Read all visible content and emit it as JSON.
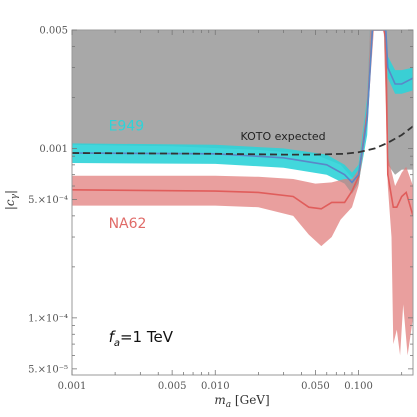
{
  "chart_data": {
    "type": "area",
    "x_scale": "log",
    "y_scale": "log",
    "xlim": [
      0.001,
      0.24
    ],
    "ylim": [
      4.6e-05,
      0.005
    ],
    "xlabel": "m_a [GeV]",
    "ylabel": "|c_γ|",
    "x_ticks": [
      {
        "value": 0.001,
        "label": "0.001"
      },
      {
        "value": 0.005,
        "label": "0.005"
      },
      {
        "value": 0.01,
        "label": "0.010"
      },
      {
        "value": 0.05,
        "label": "0.050"
      },
      {
        "value": 0.1,
        "label": "0.100"
      }
    ],
    "y_ticks": [
      {
        "value": 0.005,
        "label": "0.005"
      },
      {
        "value": 0.001,
        "label": "0.001"
      },
      {
        "value": 0.0005,
        "label": "5.×10⁻⁴"
      },
      {
        "value": 0.0001,
        "label": "1.×10⁻⁴"
      },
      {
        "value": 5e-05,
        "label": "5.×10⁻⁵"
      }
    ],
    "excluded_region": {
      "color": "#a8a8a8",
      "lower_boundary": [
        [
          0.001,
          0.00105
        ],
        [
          0.005,
          0.00103
        ],
        [
          0.02,
          0.00098
        ],
        [
          0.05,
          0.00092
        ],
        [
          0.075,
          0.0008
        ],
        [
          0.09,
          0.00067
        ],
        [
          0.1,
          0.0007
        ],
        [
          0.115,
          0.0015
        ],
        [
          0.125,
          0.005
        ],
        [
          0.15,
          0.005
        ],
        [
          0.16,
          0.0008
        ],
        [
          0.18,
          0.0007
        ],
        [
          0.2,
          0.00075
        ],
        [
          0.24,
          0.00075
        ]
      ]
    },
    "series": [
      {
        "name": "E949",
        "color": "#2ed3d8",
        "line_color": "#5a87c8",
        "central": [
          [
            0.001,
            0.00094
          ],
          [
            0.01,
            0.00093
          ],
          [
            0.03,
            0.00088
          ],
          [
            0.06,
            0.0008
          ],
          [
            0.08,
            0.0007
          ],
          [
            0.09,
            0.00063
          ],
          [
            0.1,
            0.0007
          ],
          [
            0.115,
            0.0015
          ],
          [
            0.125,
            0.005
          ],
          [
            0.155,
            0.005
          ],
          [
            0.16,
            0.003
          ],
          [
            0.18,
            0.0024
          ],
          [
            0.2,
            0.0024
          ],
          [
            0.24,
            0.0026
          ]
        ],
        "upper": [
          [
            0.001,
            0.00107
          ],
          [
            0.01,
            0.00105
          ],
          [
            0.03,
            0.001
          ],
          [
            0.06,
            0.00092
          ],
          [
            0.08,
            0.0008
          ],
          [
            0.09,
            0.00072
          ],
          [
            0.1,
            0.0008
          ],
          [
            0.115,
            0.002
          ],
          [
            0.12,
            0.005
          ],
          [
            0.155,
            0.005
          ],
          [
            0.16,
            0.0035
          ],
          [
            0.18,
            0.0029
          ],
          [
            0.2,
            0.0029
          ],
          [
            0.24,
            0.003
          ]
        ],
        "lower": [
          [
            0.001,
            0.00082
          ],
          [
            0.01,
            0.00081
          ],
          [
            0.03,
            0.00077
          ],
          [
            0.06,
            0.0007
          ],
          [
            0.08,
            0.00062
          ],
          [
            0.09,
            0.00054
          ],
          [
            0.1,
            0.00062
          ],
          [
            0.115,
            0.0012
          ],
          [
            0.125,
            0.005
          ],
          [
            0.155,
            0.005
          ],
          [
            0.16,
            0.0026
          ],
          [
            0.18,
            0.0021
          ],
          [
            0.2,
            0.0021
          ],
          [
            0.24,
            0.0022
          ]
        ]
      },
      {
        "name": "NA62",
        "color": "#e07a78",
        "line_color": "#e05d5b",
        "central": [
          [
            0.001,
            0.00057
          ],
          [
            0.01,
            0.00056
          ],
          [
            0.02,
            0.00055
          ],
          [
            0.035,
            0.00052
          ],
          [
            0.045,
            0.00045
          ],
          [
            0.055,
            0.00044
          ],
          [
            0.065,
            0.00048
          ],
          [
            0.08,
            0.00048
          ],
          [
            0.09,
            0.00056
          ],
          [
            0.1,
            0.00068
          ],
          [
            0.115,
            0.0016
          ],
          [
            0.125,
            0.005
          ],
          [
            0.15,
            0.005
          ],
          [
            0.155,
            0.0045
          ],
          [
            0.16,
            0.0007
          ],
          [
            0.175,
            0.00045
          ],
          [
            0.185,
            0.00045
          ],
          [
            0.2,
            0.00052
          ],
          [
            0.215,
            0.00055
          ],
          [
            0.24,
            0.0004
          ]
        ],
        "upper": [
          [
            0.001,
            0.00069
          ],
          [
            0.01,
            0.00069
          ],
          [
            0.02,
            0.00068
          ],
          [
            0.035,
            0.00066
          ],
          [
            0.05,
            0.00062
          ],
          [
            0.065,
            0.00063
          ],
          [
            0.08,
            0.00066
          ],
          [
            0.09,
            0.00066
          ],
          [
            0.1,
            0.00075
          ],
          [
            0.115,
            0.0018
          ],
          [
            0.12,
            0.005
          ],
          [
            0.15,
            0.005
          ],
          [
            0.155,
            0.0048
          ],
          [
            0.16,
            0.0009
          ],
          [
            0.18,
            0.0006
          ],
          [
            0.2,
            0.00072
          ],
          [
            0.215,
            0.00078
          ],
          [
            0.24,
            0.0006
          ]
        ],
        "lower": [
          [
            0.001,
            0.00046
          ],
          [
            0.01,
            0.00046
          ],
          [
            0.02,
            0.00045
          ],
          [
            0.035,
            0.0004
          ],
          [
            0.045,
            0.00031
          ],
          [
            0.055,
            0.000265
          ],
          [
            0.065,
            0.0003
          ],
          [
            0.075,
            0.00038
          ],
          [
            0.09,
            0.00045
          ],
          [
            0.1,
            0.0006
          ],
          [
            0.115,
            0.0014
          ],
          [
            0.128,
            0.005
          ],
          [
            0.15,
            0.005
          ],
          [
            0.16,
            0.0006
          ],
          [
            0.17,
            0.0003
          ],
          [
            0.175,
            7e-05
          ],
          [
            0.185,
            8.5e-05
          ],
          [
            0.195,
            6e-05
          ],
          [
            0.205,
            0.00012
          ],
          [
            0.22,
            6e-05
          ],
          [
            0.24,
            0.0001
          ]
        ]
      },
      {
        "name": "KOTO expected",
        "style": "dashed",
        "color": "#333333",
        "points": [
          [
            0.001,
            0.00094
          ],
          [
            0.01,
            0.00093
          ],
          [
            0.03,
            0.00092
          ],
          [
            0.05,
            0.00092
          ],
          [
            0.08,
            0.00093
          ],
          [
            0.1,
            0.00095
          ],
          [
            0.13,
            0.001
          ],
          [
            0.16,
            0.00108
          ],
          [
            0.2,
            0.0012
          ],
          [
            0.24,
            0.00135
          ]
        ]
      }
    ],
    "annotations": [
      {
        "text": "E949",
        "color": "#2ed3d8",
        "x": 0.0018,
        "y": 0.00128
      },
      {
        "text": "KOTO expected",
        "color": "#222222",
        "x": 0.015,
        "y": 0.00112
      },
      {
        "text": "NA62",
        "color": "#e06b68",
        "x": 0.0018,
        "y": 0.00034
      },
      {
        "text": "f_a=1 TeV",
        "color": "#111111",
        "x": 0.0018,
        "y": 7.2e-05
      }
    ]
  }
}
